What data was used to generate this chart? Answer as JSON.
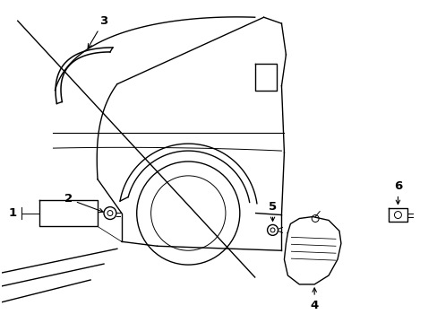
{
  "background_color": "#ffffff",
  "line_color": "#000000",
  "lw": 1.0,
  "tlw": 0.7,
  "fig_w": 4.89,
  "fig_h": 3.6,
  "dpi": 100
}
